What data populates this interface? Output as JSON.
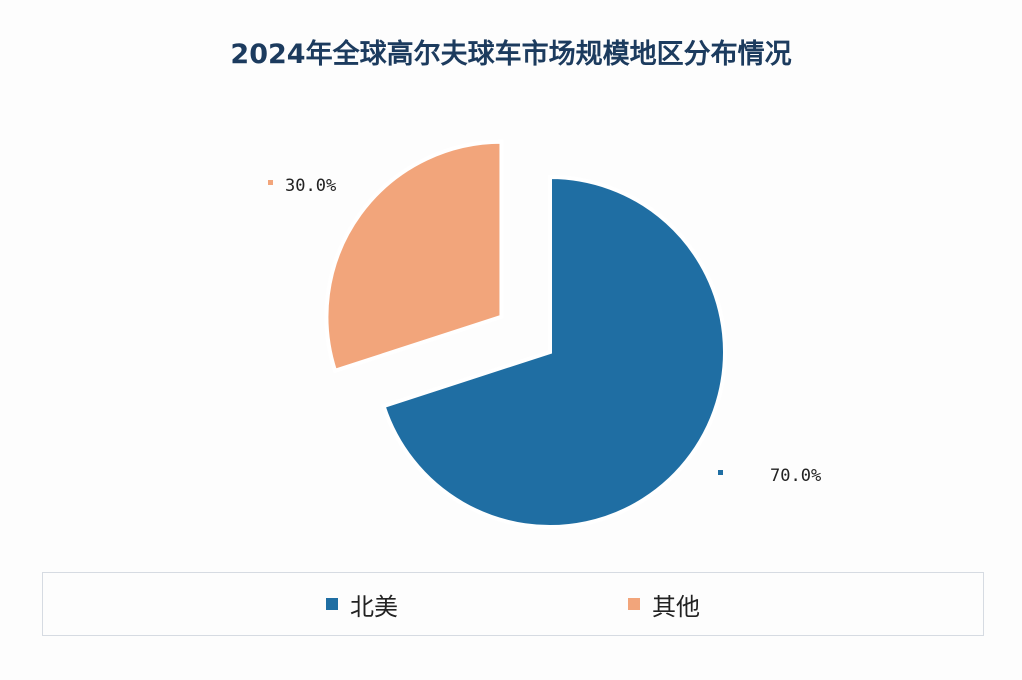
{
  "chart_data": {
    "type": "pie",
    "title": "2024年全球高尔夫球车市场规模地区分布情况",
    "slices": [
      {
        "name": "北美",
        "value": 70.0,
        "label": "70.0%",
        "color": "#1f6ea3",
        "exploded": false
      },
      {
        "name": "其他",
        "value": 30.0,
        "label": "30.0%",
        "color": "#f2a57b",
        "exploded": true
      }
    ],
    "legend_position": "bottom"
  }
}
